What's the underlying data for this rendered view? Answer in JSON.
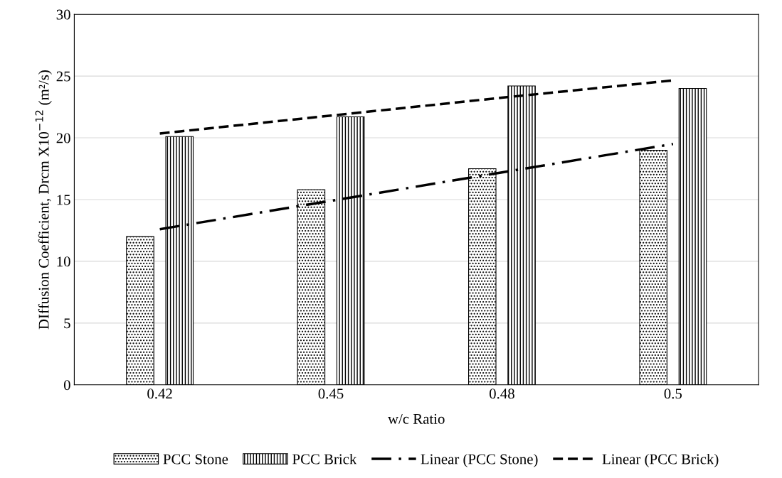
{
  "chart_data": {
    "type": "bar",
    "xlabel": "w/c Ratio",
    "ylabel": "DIffusion Coefficient, Drcm X10$^{−12}$ (m²/s)",
    "categories": [
      "0.42",
      "0.45",
      "0.48",
      "0.5"
    ],
    "series": [
      {
        "name": "PCC Stone",
        "color": "#000000",
        "values": [
          12.0,
          15.8,
          17.5,
          19.0
        ]
      },
      {
        "name": "PCC Brick",
        "color": "#000000",
        "values": [
          20.1,
          21.7,
          24.2,
          24.0
        ]
      },
      {
        "name": "Linear (PCC Stone)",
        "type": "line",
        "line_style": "dashdot",
        "color": "#000000",
        "values": [
          12.6,
          14.9,
          17.2,
          19.5
        ]
      },
      {
        "name": "Linear (PCC Brick)",
        "type": "line",
        "line_style": "dashed",
        "color": "#000000",
        "values": [
          20.35,
          21.8,
          23.25,
          24.65
        ]
      }
    ],
    "ylim": [
      0,
      30
    ],
    "yticks": [
      0,
      5,
      10,
      15,
      20,
      25,
      30
    ],
    "grid": "y",
    "legend": "bottom"
  }
}
